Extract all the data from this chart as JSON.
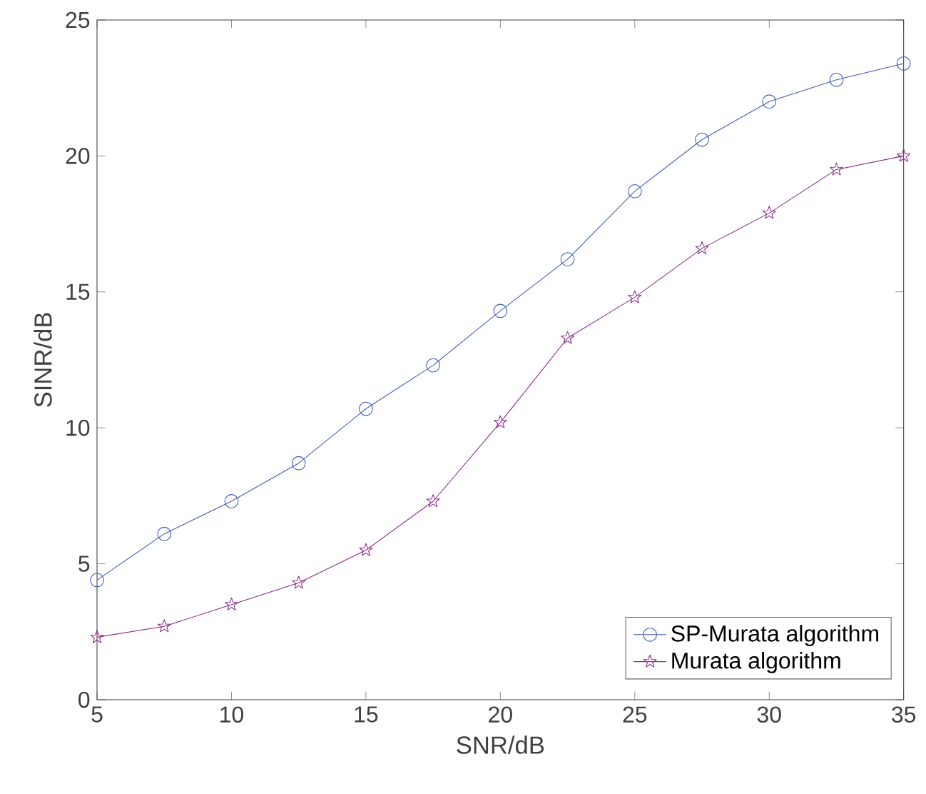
{
  "chart_data": {
    "type": "line",
    "xlabel": "SNR/dB",
    "ylabel": "SINR/dB",
    "x": [
      5,
      7.5,
      10,
      12.5,
      15,
      17.5,
      20,
      22.5,
      25,
      27.5,
      30,
      32.5,
      35
    ],
    "series": [
      {
        "name": "SP-Murata algorithm",
        "color": "#3c5ab8",
        "marker": "circle",
        "values": [
          4.4,
          6.1,
          7.3,
          8.7,
          10.7,
          12.3,
          14.3,
          16.2,
          18.7,
          20.6,
          22.0,
          22.8,
          23.4
        ]
      },
      {
        "name": "Murata algorithm",
        "color": "#8a2a8a",
        "marker": "star",
        "values": [
          2.3,
          2.7,
          3.5,
          4.3,
          5.5,
          7.3,
          10.2,
          13.3,
          14.8,
          16.6,
          17.9,
          19.5,
          20.0
        ]
      }
    ],
    "xlim": [
      5,
      35
    ],
    "ylim": [
      0,
      25
    ],
    "xticks": [
      5,
      10,
      15,
      20,
      25,
      30,
      35
    ],
    "yticks": [
      0,
      5,
      10,
      15,
      20,
      25
    ],
    "grid": false,
    "legend": "bottom right",
    "line_style": "solid"
  }
}
